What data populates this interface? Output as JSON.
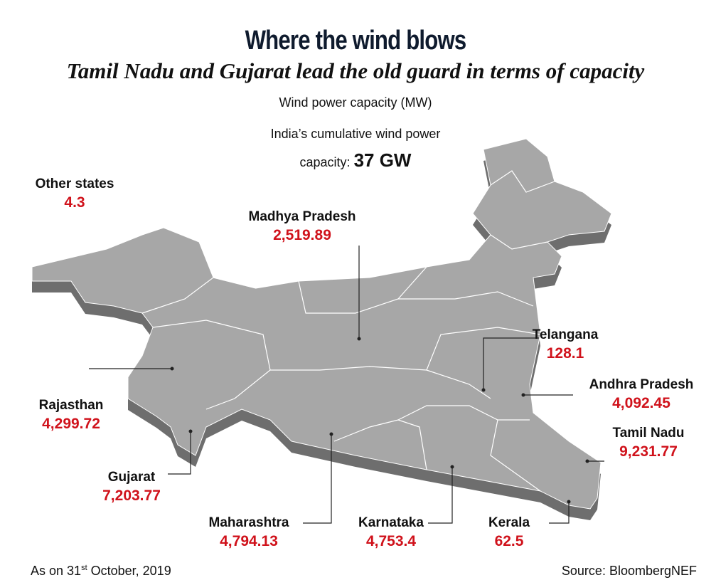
{
  "header": {
    "title": "Where the wind blows",
    "subtitle": "Tamil Nadu and Gujarat lead the old guard in terms of capacity",
    "unit": "Wind power capacity (MW)"
  },
  "cumulative": {
    "line1": "India’s cumulative wind power",
    "line2": "capacity:",
    "value": "37 GW"
  },
  "states": [
    {
      "name": "Other states",
      "value": "4.3"
    },
    {
      "name": "Madhya Pradesh",
      "value": "2,519.89"
    },
    {
      "name": "Telangana",
      "value": "128.1"
    },
    {
      "name": "Andhra Pradesh",
      "value": "4,092.45"
    },
    {
      "name": "Tamil Nadu",
      "value": "9,231.77"
    },
    {
      "name": "Rajasthan",
      "value": "4,299.72"
    },
    {
      "name": "Gujarat",
      "value": "7,203.77"
    },
    {
      "name": "Maharashtra",
      "value": "4,794.13"
    },
    {
      "name": "Karnataka",
      "value": "4,753.4"
    },
    {
      "name": "Kerala",
      "value": "62.5"
    }
  ],
  "footer": {
    "date": [
      "As on 31",
      "st",
      " October, 2019"
    ],
    "source": "Source: BloombergNEF"
  }
}
